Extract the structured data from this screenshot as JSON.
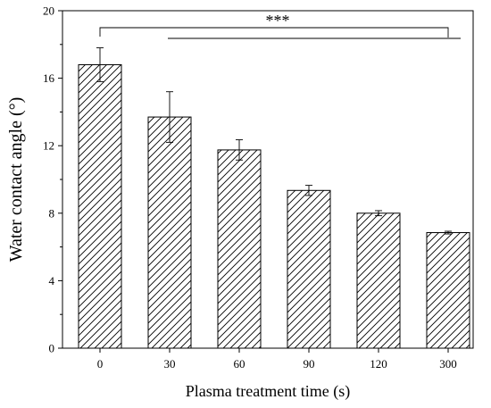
{
  "chart_data": {
    "type": "bar",
    "xlabel": "Plasma treatment time (s)",
    "ylabel": "Water contact angle (°)",
    "categories": [
      "0",
      "30",
      "60",
      "90",
      "120",
      "300"
    ],
    "values": [
      16.8,
      13.7,
      11.75,
      9.35,
      8.0,
      6.85
    ],
    "errors": [
      1.0,
      1.5,
      0.6,
      0.3,
      0.15,
      0.08
    ],
    "ylim": [
      0,
      20
    ],
    "yticks": [
      0,
      4,
      8,
      12,
      16,
      20
    ],
    "bar_fill": "hatched",
    "grid": false,
    "significance": {
      "label": "***",
      "from_category": "0",
      "to_category": "300"
    }
  }
}
